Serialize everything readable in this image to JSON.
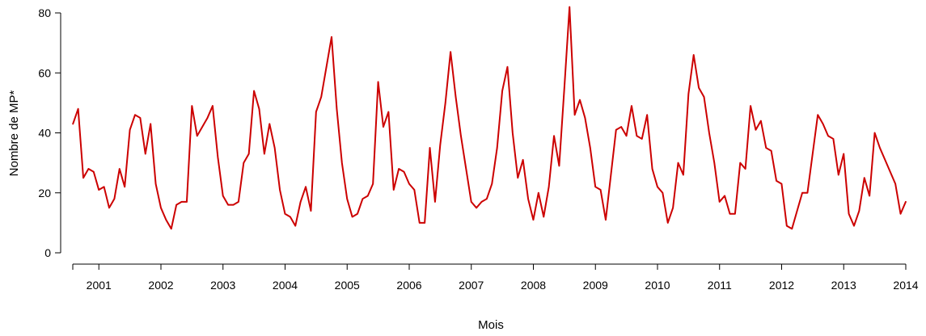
{
  "chart_data": {
    "type": "line",
    "title": "",
    "xlabel": "Mois",
    "ylabel": "Nombre de MP*",
    "grid": false,
    "legend": "none",
    "xlim": [
      2000.58,
      2014.0
    ],
    "ylim": [
      0,
      80
    ],
    "x_ticks": [
      2001,
      2002,
      2003,
      2004,
      2005,
      2006,
      2007,
      2008,
      2009,
      2010,
      2011,
      2012,
      2013,
      2014
    ],
    "x_tick_labels": [
      "2001",
      "2002",
      "2003",
      "2004",
      "2005",
      "2006",
      "2007",
      "2008",
      "2009",
      "2010",
      "2011",
      "2012",
      "2013",
      "2014"
    ],
    "y_ticks": [
      0,
      20,
      40,
      60,
      80
    ],
    "y_tick_labels": [
      "0",
      "20",
      "40",
      "60",
      "80"
    ],
    "x_start": 2000.583,
    "x_step": 0.08333,
    "series": [
      {
        "color": "#cc0000",
        "values": [
          43,
          48,
          25,
          28,
          27,
          21,
          22,
          15,
          18,
          28,
          22,
          41,
          46,
          45,
          33,
          43,
          23,
          15,
          11,
          8,
          16,
          17,
          17,
          49,
          39,
          42,
          45,
          49,
          32,
          19,
          16,
          16,
          17,
          30,
          33,
          54,
          48,
          33,
          43,
          35,
          21,
          13,
          12,
          9,
          17,
          22,
          14,
          47,
          52,
          62,
          72,
          48,
          30,
          18,
          12,
          13,
          18,
          19,
          23,
          57,
          42,
          47,
          21,
          28,
          27,
          23,
          21,
          10,
          10,
          35,
          17,
          36,
          50,
          67,
          52,
          39,
          28,
          17,
          15,
          17,
          18,
          23,
          35,
          54,
          62,
          40,
          25,
          31,
          18,
          11,
          20,
          12,
          22,
          39,
          29,
          55,
          82,
          46,
          51,
          45,
          35,
          22,
          21,
          11,
          26,
          41,
          42,
          39,
          49,
          39,
          38,
          46,
          28,
          22,
          20,
          10,
          15,
          30,
          26,
          53,
          66,
          55,
          52,
          40,
          30,
          17,
          19,
          13,
          13,
          30,
          28,
          49,
          41,
          44,
          35,
          34,
          24,
          23,
          9,
          8,
          14,
          20,
          20,
          33,
          46,
          43,
          39,
          38,
          26,
          33,
          13,
          9,
          14,
          25,
          19,
          40,
          35,
          31,
          27,
          23,
          13,
          17
        ]
      }
    ]
  }
}
